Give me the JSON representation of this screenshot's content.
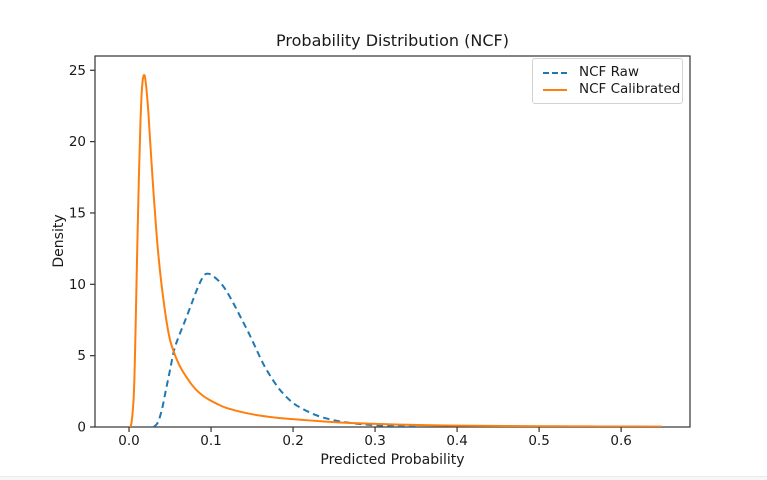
{
  "figure": {
    "background": "#ffffff"
  },
  "chart_data": {
    "type": "line",
    "title": "Probability Distribution (NCF)",
    "xlabel": "Predicted Probability",
    "ylabel": "Density",
    "xlim": [
      -0.0415,
      0.684
    ],
    "ylim": [
      0,
      26
    ],
    "xticks": [
      0.0,
      0.1,
      0.2,
      0.3,
      0.4,
      0.5,
      0.6
    ],
    "xtick_labels": [
      "0.0",
      "0.1",
      "0.2",
      "0.3",
      "0.4",
      "0.5",
      "0.6"
    ],
    "yticks": [
      0,
      5,
      10,
      15,
      20,
      25
    ],
    "ytick_labels": [
      "0",
      "5",
      "10",
      "15",
      "20",
      "25"
    ],
    "grid": false,
    "axis_color": "#333333",
    "text_color": "#1a1a1a",
    "legend": {
      "position": "upper right"
    },
    "series": [
      {
        "name": "NCF Raw",
        "color": "#1f77b4",
        "line_style": "dashed",
        "points": [
          [
            0.03,
            0.0
          ],
          [
            0.035,
            0.3
          ],
          [
            0.04,
            1.2
          ],
          [
            0.045,
            2.6
          ],
          [
            0.05,
            4.0
          ],
          [
            0.055,
            5.4
          ],
          [
            0.061,
            6.4
          ],
          [
            0.068,
            7.4
          ],
          [
            0.076,
            8.6
          ],
          [
            0.084,
            9.8
          ],
          [
            0.091,
            10.6
          ],
          [
            0.096,
            10.75
          ],
          [
            0.102,
            10.6
          ],
          [
            0.11,
            10.2
          ],
          [
            0.118,
            9.6
          ],
          [
            0.127,
            8.7
          ],
          [
            0.136,
            7.7
          ],
          [
            0.145,
            6.7
          ],
          [
            0.154,
            5.6
          ],
          [
            0.163,
            4.5
          ],
          [
            0.172,
            3.6
          ],
          [
            0.182,
            2.75
          ],
          [
            0.192,
            2.1
          ],
          [
            0.202,
            1.6
          ],
          [
            0.214,
            1.2
          ],
          [
            0.227,
            0.85
          ],
          [
            0.242,
            0.58
          ],
          [
            0.258,
            0.38
          ],
          [
            0.275,
            0.25
          ],
          [
            0.292,
            0.16
          ],
          [
            0.31,
            0.1
          ],
          [
            0.33,
            0.05
          ],
          [
            0.35,
            0.02
          ]
        ]
      },
      {
        "name": "NCF Calibrated",
        "color": "#ff7f0e",
        "line_style": "solid",
        "points": [
          [
            0.0,
            0.0
          ],
          [
            0.003,
            0.3
          ],
          [
            0.006,
            2.5
          ],
          [
            0.008,
            7.0
          ],
          [
            0.01,
            12.5
          ],
          [
            0.012,
            17.5
          ],
          [
            0.014,
            21.5
          ],
          [
            0.016,
            23.9
          ],
          [
            0.018,
            24.65
          ],
          [
            0.02,
            24.3
          ],
          [
            0.023,
            22.5
          ],
          [
            0.026,
            19.8
          ],
          [
            0.03,
            16.3
          ],
          [
            0.034,
            13.2
          ],
          [
            0.038,
            10.8
          ],
          [
            0.042,
            8.9
          ],
          [
            0.046,
            7.3
          ],
          [
            0.05,
            6.1
          ],
          [
            0.055,
            5.2
          ],
          [
            0.06,
            4.5
          ],
          [
            0.065,
            3.95
          ],
          [
            0.07,
            3.5
          ],
          [
            0.076,
            3.0
          ],
          [
            0.082,
            2.6
          ],
          [
            0.09,
            2.2
          ],
          [
            0.098,
            1.9
          ],
          [
            0.108,
            1.6
          ],
          [
            0.118,
            1.35
          ],
          [
            0.13,
            1.15
          ],
          [
            0.145,
            0.95
          ],
          [
            0.16,
            0.8
          ],
          [
            0.18,
            0.65
          ],
          [
            0.2,
            0.55
          ],
          [
            0.22,
            0.46
          ],
          [
            0.24,
            0.38
          ],
          [
            0.26,
            0.31
          ],
          [
            0.28,
            0.26
          ],
          [
            0.3,
            0.22
          ],
          [
            0.33,
            0.17
          ],
          [
            0.36,
            0.13
          ],
          [
            0.4,
            0.1
          ],
          [
            0.44,
            0.08
          ],
          [
            0.48,
            0.06
          ],
          [
            0.52,
            0.05
          ],
          [
            0.56,
            0.04
          ],
          [
            0.6,
            0.035
          ],
          [
            0.65,
            0.03
          ]
        ]
      }
    ]
  }
}
